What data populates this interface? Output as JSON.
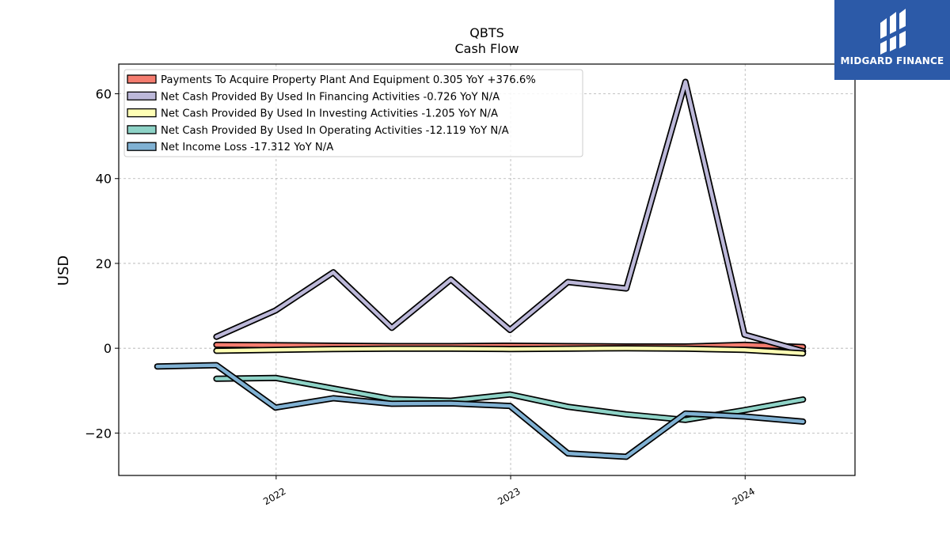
{
  "brand": {
    "name": "MIDGARD FINANCE",
    "colors": {
      "background": "#2c5aa8",
      "text": "#ffffff"
    }
  },
  "chart_data": {
    "type": "line",
    "title": "QBTS",
    "subtitle": "Cash Flow",
    "xlabel": "",
    "ylabel": "USD",
    "x_ticks": [
      "2022",
      "2023",
      "2024"
    ],
    "y_ticks": [
      -20,
      0,
      20,
      40,
      60
    ],
    "xlim": [
      "2021-05-01",
      "2024-06-20"
    ],
    "ylim": [
      -30,
      67
    ],
    "grid": true,
    "legend_position": "top-left",
    "x": [
      "2021-06-30",
      "2021-09-30",
      "2021-12-31",
      "2022-03-31",
      "2022-06-30",
      "2022-09-30",
      "2022-12-31",
      "2023-03-31",
      "2023-06-30",
      "2023-09-30",
      "2023-12-31",
      "2024-03-31"
    ],
    "series": [
      {
        "name": "Payments To Acquire Property Plant And Equipment",
        "legend": "Payments To Acquire Property Plant And Equipment  0.305 YoY +376.6%",
        "color": "#f47c6f",
        "values": [
          null,
          0.8,
          0.7,
          0.6,
          0.5,
          0.5,
          0.6,
          0.5,
          0.4,
          0.4,
          0.8,
          0.3
        ]
      },
      {
        "name": "Net Cash Provided By Used In Financing Activities",
        "legend": "Net Cash Provided By Used In Financing Activities  -0.726 YoY N/A",
        "color": "#bcb8d9",
        "values": [
          null,
          2.7,
          8.9,
          17.9,
          4.8,
          16.2,
          4.3,
          15.6,
          14.1,
          62.8,
          3.2,
          -0.7
        ]
      },
      {
        "name": "Net Cash Provided By Used In Investing Activities",
        "legend": "Net Cash Provided By Used In Investing Activities  -1.205 YoY N/A",
        "color": "#ffffb5",
        "values": [
          null,
          -0.6,
          -0.4,
          -0.2,
          -0.1,
          -0.1,
          -0.2,
          -0.1,
          0.0,
          -0.1,
          -0.4,
          -1.2
        ]
      },
      {
        "name": "Net Cash Provided By Used In Operating Activities",
        "legend": "Net Cash Provided By Used In Operating Activities  -12.119 YoY N/A",
        "color": "#8ed3c7",
        "values": [
          null,
          -7.2,
          -7.0,
          -9.5,
          -12.0,
          -12.4,
          -10.9,
          -13.8,
          -15.6,
          -16.9,
          -14.6,
          -12.1
        ]
      },
      {
        "name": "Net Income Loss",
        "legend": "Net Income Loss  -17.312 YoY N/A",
        "color": "#80b1d3",
        "values": [
          -4.3,
          -4.0,
          -14.0,
          -11.8,
          -13.1,
          -13.0,
          -13.6,
          -24.8,
          -25.6,
          -15.4,
          -16.1,
          -17.3
        ]
      }
    ]
  }
}
